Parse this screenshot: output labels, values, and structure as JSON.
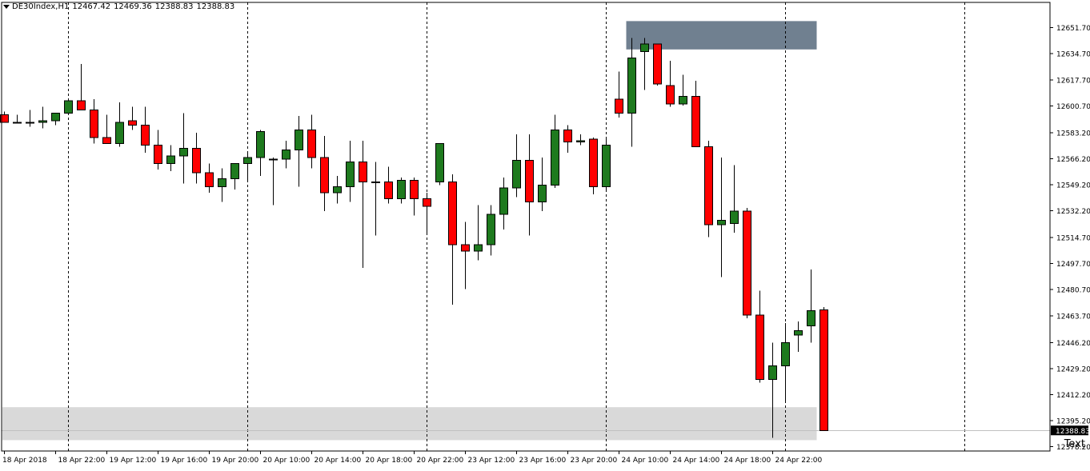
{
  "header": {
    "symbol": "DE30Index,H1",
    "open": "12467.42",
    "high": "12469.36",
    "low": "12388.83",
    "close": "12388.83"
  },
  "text_object": "Text",
  "colors": {
    "bull": "#1e7a1e",
    "bear": "#ff0000",
    "supply_zone": "#708090",
    "demand_zone": "#d9d9d9",
    "price_line": "#c0c0c0"
  },
  "chart_data": {
    "type": "candlestick",
    "ylim": [
      12375.4,
      12668.2
    ],
    "yticks": [
      "12651.70",
      "12634.70",
      "12617.70",
      "12600.70",
      "12583.20",
      "12566.20",
      "12549.20",
      "12532.20",
      "12514.70",
      "12497.70",
      "12480.70",
      "12463.70",
      "12446.20",
      "12429.20",
      "12412.20",
      "12395.20",
      "12378.20"
    ],
    "last_price_label": "12388.83",
    "xlabels": [
      "18 Apr 2018",
      "18 Apr 22:00",
      "19 Apr 12:00",
      "19 Apr 16:00",
      "19 Apr 20:00",
      "20 Apr 10:00",
      "20 Apr 14:00",
      "20 Apr 18:00",
      "20 Apr 22:00",
      "23 Apr 12:00",
      "23 Apr 16:00",
      "23 Apr 20:00",
      "24 Apr 10:00",
      "24 Apr 14:00",
      "24 Apr 18:00",
      "24 Apr 22:00"
    ],
    "session_separators_bar_index": [
      5,
      19,
      33,
      47,
      61,
      75
    ],
    "zones": [
      {
        "kind": "supply",
        "from_bar": 49,
        "to_bar": 63,
        "top": 12656.0,
        "bottom": 12637.5
      },
      {
        "kind": "demand",
        "from_bar": 0,
        "to_bar": 63,
        "top": 12404.0,
        "bottom": 12382.5
      }
    ],
    "candles": [
      [
        12595.0,
        12597.0,
        12590.0,
        12590.0
      ],
      [
        12590.0,
        12595.0,
        12589.0,
        12590.0
      ],
      [
        12590.0,
        12598.0,
        12587.0,
        12590.0
      ],
      [
        12590.0,
        12600.0,
        12586.0,
        12591.0
      ],
      [
        12591.0,
        12596.0,
        12588.0,
        12596.0
      ],
      [
        12596.0,
        12603.0,
        12595.0,
        12604.0
      ],
      [
        12604.0,
        12628.0,
        12600.0,
        12598.0
      ],
      [
        12598.0,
        12605.0,
        12576.0,
        12580.0
      ],
      [
        12580.0,
        12595.0,
        12577.0,
        12576.0
      ],
      [
        12576.0,
        12603.0,
        12574.0,
        12590.0
      ],
      [
        12591.0,
        12600.0,
        12585.0,
        12588.0
      ],
      [
        12588.0,
        12600.0,
        12570.0,
        12575.0
      ],
      [
        12575.0,
        12585.0,
        12559.0,
        12563.0
      ],
      [
        12563.0,
        12575.0,
        12558.0,
        12568.0
      ],
      [
        12568.0,
        12596.0,
        12550.0,
        12573.0
      ],
      [
        12573.0,
        12583.0,
        12550.0,
        12557.0
      ],
      [
        12557.0,
        12563.0,
        12544.0,
        12548.0
      ],
      [
        12548.0,
        12560.0,
        12538.0,
        12553.0
      ],
      [
        12553.0,
        12563.0,
        12546.0,
        12563.0
      ],
      [
        12563.0,
        12570.0,
        12552.0,
        12567.0
      ],
      [
        12567.0,
        12585.0,
        12555.0,
        12584.0
      ],
      [
        12566.0,
        12567.0,
        12536.0,
        12566.0
      ],
      [
        12566.0,
        12578.0,
        12560.0,
        12572.0
      ],
      [
        12572.0,
        12594.0,
        12548.0,
        12585.0
      ],
      [
        12585.0,
        12595.0,
        12560.0,
        12567.0
      ],
      [
        12567.0,
        12581.0,
        12532.0,
        12544.0
      ],
      [
        12544.0,
        12555.0,
        12537.0,
        12548.0
      ],
      [
        12548.0,
        12578.0,
        12538.0,
        12564.0
      ],
      [
        12564.0,
        12578.0,
        12495.0,
        12551.0
      ],
      [
        12551.0,
        12564.0,
        12516.0,
        12551.0
      ],
      [
        12551.0,
        12561.0,
        12537.0,
        12540.0
      ],
      [
        12540.0,
        12554.0,
        12537.0,
        12552.0
      ],
      [
        12552.0,
        12554.0,
        12529.0,
        12540.0
      ],
      [
        12540.0,
        12544.0,
        12518.0,
        12535.0
      ],
      [
        12551.0,
        12576.0,
        12549.0,
        12576.0
      ],
      [
        12551.0,
        12556.0,
        12471.0,
        12510.0
      ],
      [
        12510.0,
        12525.0,
        12481.0,
        12506.0
      ],
      [
        12506.0,
        12536.0,
        12500.0,
        12510.0
      ],
      [
        12510.0,
        12536.0,
        12503.0,
        12530.0
      ],
      [
        12530.0,
        12554.0,
        12520.0,
        12547.0
      ],
      [
        12547.0,
        12582.0,
        12541.0,
        12565.0
      ],
      [
        12565.0,
        12582.0,
        12516.0,
        12538.0
      ],
      [
        12538.0,
        12567.0,
        12532.0,
        12549.0
      ],
      [
        12549.0,
        12595.0,
        12547.0,
        12585.0
      ],
      [
        12585.0,
        12588.0,
        12570.0,
        12577.0
      ],
      [
        12577.0,
        12582.0,
        12575.0,
        12578.0
      ],
      [
        12579.0,
        12580.0,
        12543.0,
        12548.0
      ],
      [
        12548.0,
        12579.0,
        12545.0,
        12575.0
      ],
      [
        12605.0,
        12623.0,
        12593.0,
        12596.0
      ],
      [
        12596.0,
        12645.0,
        12574.0,
        12632.0
      ],
      [
        12636.0,
        12645.0,
        12611.0,
        12641.0
      ],
      [
        12641.0,
        12641.0,
        12614.0,
        12615.0
      ],
      [
        12614.0,
        12630.0,
        12600.0,
        12602.0
      ],
      [
        12602.0,
        12621.0,
        12601.0,
        12607.0
      ],
      [
        12607.0,
        12617.0,
        12574.0,
        12574.0
      ],
      [
        12574.0,
        12578.0,
        12515.0,
        12523.0
      ],
      [
        12523.0,
        12567.0,
        12489.0,
        12526.0
      ],
      [
        12524.0,
        12562.0,
        12518.0,
        12532.0
      ],
      [
        12532.0,
        12534.0,
        12462.0,
        12464.0
      ],
      [
        12464.0,
        12480.0,
        12420.0,
        12422.0
      ],
      [
        12422.0,
        12446.0,
        12384.0,
        12431.0
      ],
      [
        12431.0,
        12459.0,
        12408.0,
        12446.0
      ],
      [
        12451.0,
        12460.0,
        12440.0,
        12454.0
      ],
      [
        12457.0,
        12494.0,
        12446.0,
        12467.0
      ],
      [
        12467.42,
        12469.36,
        12388.83,
        12388.83
      ]
    ]
  }
}
